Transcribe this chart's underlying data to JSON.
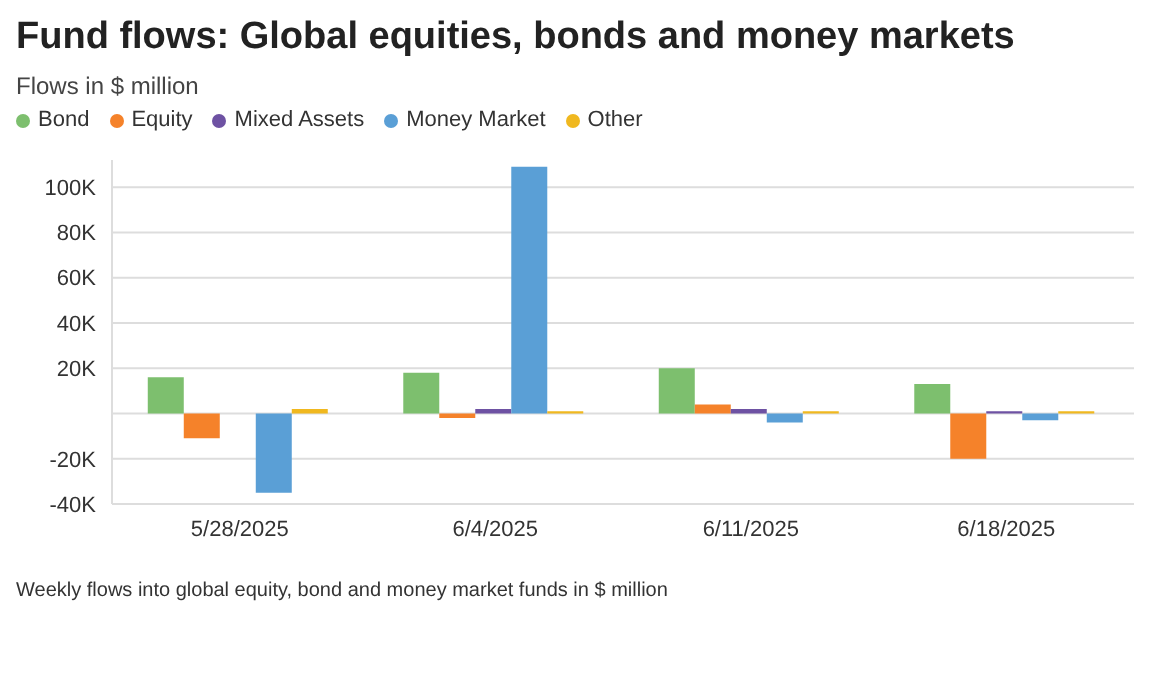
{
  "chart_data": {
    "type": "bar",
    "title": "Fund flows: Global equities, bonds and money markets",
    "subtitle": "Flows in $ million",
    "categories": [
      "5/28/2025",
      "6/4/2025",
      "6/11/2025",
      "6/18/2025"
    ],
    "series": [
      {
        "name": "Bond",
        "color": "#7dbf6e",
        "values": [
          16000,
          18000,
          20000,
          13000
        ]
      },
      {
        "name": "Equity",
        "color": "#f5822a",
        "values": [
          -11000,
          -2000,
          4000,
          -20000
        ]
      },
      {
        "name": "Mixed Assets",
        "color": "#6e52a3",
        "values": [
          0,
          2000,
          2000,
          1000
        ]
      },
      {
        "name": "Money Market",
        "color": "#5a9fd6",
        "values": [
          -35000,
          109000,
          -4000,
          -3000
        ]
      },
      {
        "name": "Other",
        "color": "#f0b81f",
        "values": [
          2000,
          1000,
          1000,
          1000
        ]
      }
    ],
    "ylim": [
      -40000,
      112000
    ],
    "yticks": [
      {
        "value": -40000,
        "label": "-40K"
      },
      {
        "value": -20000,
        "label": "-20K"
      },
      {
        "value": 0,
        "label": null
      },
      {
        "value": 20000,
        "label": "20K"
      },
      {
        "value": 40000,
        "label": "40K"
      },
      {
        "value": 60000,
        "label": "60K"
      },
      {
        "value": 80000,
        "label": "80K"
      },
      {
        "value": 100000,
        "label": "100K"
      }
    ],
    "grid": "y",
    "legend": "top left",
    "annotations": [
      "Weekly flows into global equity, bond and money market funds in $ million"
    ]
  }
}
